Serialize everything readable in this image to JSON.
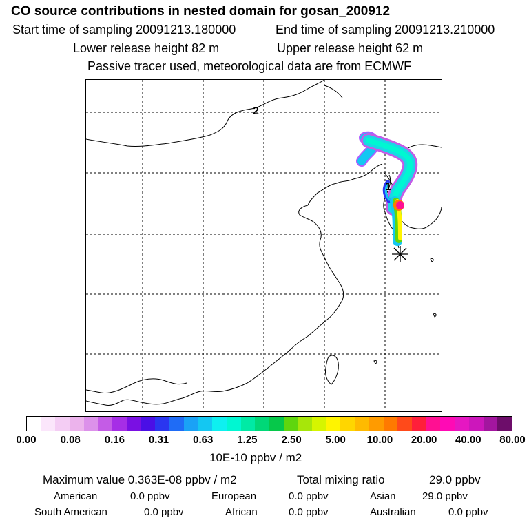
{
  "header": {
    "title": "CO  source contributions in nested domain for gosan_200912",
    "start_time": "Start time of sampling 20091213.180000",
    "end_time": "End time of sampling 20091213.210000",
    "lower_height": "Lower release height   82 m",
    "upper_height": "Upper release height   62 m",
    "note": "Passive tracer used, meteorological data are from ECMWF"
  },
  "map": {
    "contour_label_a": "2",
    "contour_label_b": "1",
    "receptor_marker": "gosan receptor (star)"
  },
  "colorbar": {
    "colors": [
      "#ffffff",
      "#fbe6fb",
      "#f4cdf4",
      "#ecb3ec",
      "#dc91ea",
      "#c45ce6",
      "#a62ee6",
      "#7a10e3",
      "#4a0fe6",
      "#2a36f0",
      "#1f6cf6",
      "#1aa2f6",
      "#14c7f2",
      "#0ef0f0",
      "#00f7d2",
      "#00eaa5",
      "#00d878",
      "#06c84a",
      "#5fd60e",
      "#a7e60a",
      "#d6f500",
      "#fff400",
      "#ffd600",
      "#ffba00",
      "#ff9b00",
      "#ff7a00",
      "#ff4a1a",
      "#ff1f3a",
      "#ff1092",
      "#ff0ab5",
      "#e617c2",
      "#cc17bb",
      "#a3169f",
      "#6d0d6a"
    ],
    "ticks": [
      "0.00",
      "0.08",
      "0.16",
      "0.31",
      "0.63",
      "1.25",
      "2.50",
      "5.00",
      "10.00",
      "20.00",
      "40.00",
      "80.00"
    ],
    "unit": "10E-10 ppbv / m2"
  },
  "summary": {
    "max_value": "Maximum value  0.363E-08 ppbv / m2",
    "total": "Total mixing ratio",
    "total_value": "29.0 ppbv",
    "regions": [
      {
        "name": "American",
        "value": "0.0 ppbv"
      },
      {
        "name": "European",
        "value": "0.0 ppbv"
      },
      {
        "name": "Asian",
        "value": "29.0 ppbv"
      },
      {
        "name": "South American",
        "value": "0.0 ppbv"
      },
      {
        "name": "African",
        "value": "0.0 ppbv"
      },
      {
        "name": "Australian",
        "value": "0.0 ppbv"
      }
    ]
  }
}
